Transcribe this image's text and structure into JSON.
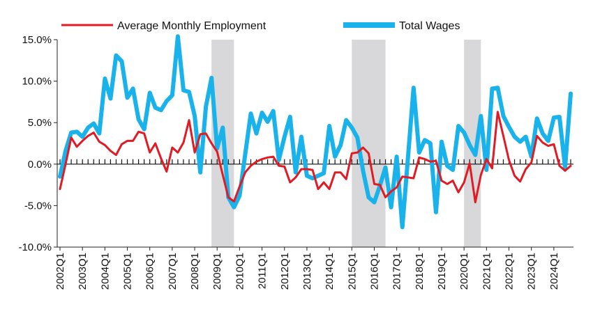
{
  "chart_data": {
    "type": "line",
    "title": "",
    "xlabel": "",
    "ylabel": "",
    "ylim": [
      -10,
      15
    ],
    "yticks": [
      "15.0%",
      "10.0%",
      "5.0%",
      "0.0%",
      "-5.0%",
      "-10.0%"
    ],
    "ytick_values": [
      15,
      10,
      5,
      0,
      -5,
      -10
    ],
    "xtick_labels": [
      "2002Q1",
      "2003Q1",
      "2004Q1",
      "2005Q1",
      "2006Q1",
      "2007Q1",
      "2008Q1",
      "2009Q1",
      "2010Q1",
      "2011Q1",
      "2012Q1",
      "2013Q1",
      "2014Q1",
      "2015Q1",
      "2016Q1",
      "2017Q1",
      "2018Q1",
      "2019Q1",
      "2020Q1",
      "2021Q1",
      "2022Q1",
      "2023Q1",
      "2024Q1"
    ],
    "x_start": "2002Q1",
    "x_end": "2024Q4",
    "recession_bands": [
      {
        "start": "2008Q4",
        "end": "2009Q4"
      },
      {
        "start": "2015Q1",
        "end": "2016Q3"
      },
      {
        "start": "2020Q1",
        "end": "2020Q4"
      }
    ],
    "legend_position": "top",
    "series": [
      {
        "name": "Average Monthly Employment",
        "color": "#e01b24",
        "values": [
          -3.0,
          0.0,
          3.2,
          2.1,
          2.8,
          3.4,
          3.8,
          2.7,
          2.3,
          1.6,
          1.1,
          2.4,
          2.8,
          2.8,
          3.9,
          3.7,
          1.4,
          2.5,
          0.7,
          -0.9,
          2.0,
          1.4,
          2.6,
          5.3,
          1.4,
          3.6,
          3.7,
          2.5,
          1.5,
          -1.3,
          -4.0,
          -4.5,
          -2.7,
          -1.0,
          -0.2,
          0.3,
          0.6,
          0.8,
          0.9,
          -0.2,
          -0.3,
          -2.2,
          -1.6,
          -0.6,
          -0.6,
          -0.7,
          -3.0,
          -2.2,
          -3.0,
          -1.0,
          -1.0,
          -1.8,
          1.3,
          1.4,
          2.0,
          1.3,
          -2.4,
          -2.5,
          -4.0,
          -3.3,
          -2.8,
          -1.5,
          -1.6,
          -1.7,
          0.8,
          0.6,
          0.3,
          0.4,
          -2.0,
          -2.4,
          -2.0,
          -3.4,
          -2.2,
          0.1,
          -4.6,
          -1.3,
          0.6,
          -0.5,
          6.3,
          3.4,
          0.5,
          -1.4,
          -2.1,
          -0.6,
          0.2,
          3.4,
          2.6,
          2.2,
          2.4,
          -0.2,
          -0.8,
          -0.2
        ]
      },
      {
        "name": "Total Wages",
        "color": "#1ab2ea",
        "values": [
          -1.5,
          1.6,
          3.8,
          3.9,
          3.3,
          4.4,
          4.9,
          3.7,
          10.3,
          7.9,
          13.1,
          12.4,
          8.0,
          9.1,
          5.4,
          4.2,
          8.6,
          6.8,
          6.5,
          7.6,
          8.3,
          15.4,
          8.9,
          8.7,
          5.8,
          -1.0,
          6.9,
          10.4,
          1.9,
          4.4,
          -4.0,
          -5.2,
          -3.8,
          1.2,
          6.1,
          3.7,
          6.2,
          5.1,
          6.4,
          0.5,
          3.3,
          5.7,
          -1.0,
          3.3,
          -1.4,
          -1.7,
          -1.4,
          -1.1,
          4.6,
          0.9,
          2.3,
          5.3,
          4.4,
          3.2,
          -0.8,
          -4.0,
          -4.6,
          -2.6,
          -0.4,
          -5.2,
          0.9,
          -7.6,
          0.7,
          9.2,
          1.4,
          2.9,
          2.5,
          -5.8,
          2.7,
          -0.2,
          -0.7,
          4.6,
          3.8,
          2.3,
          1.1,
          5.8,
          -0.7,
          9.1,
          9.2,
          5.8,
          4.5,
          3.3,
          2.7,
          3.3,
          0.9,
          5.5,
          3.7,
          2.8,
          5.6,
          5.7,
          -0.4,
          8.5
        ]
      }
    ]
  }
}
